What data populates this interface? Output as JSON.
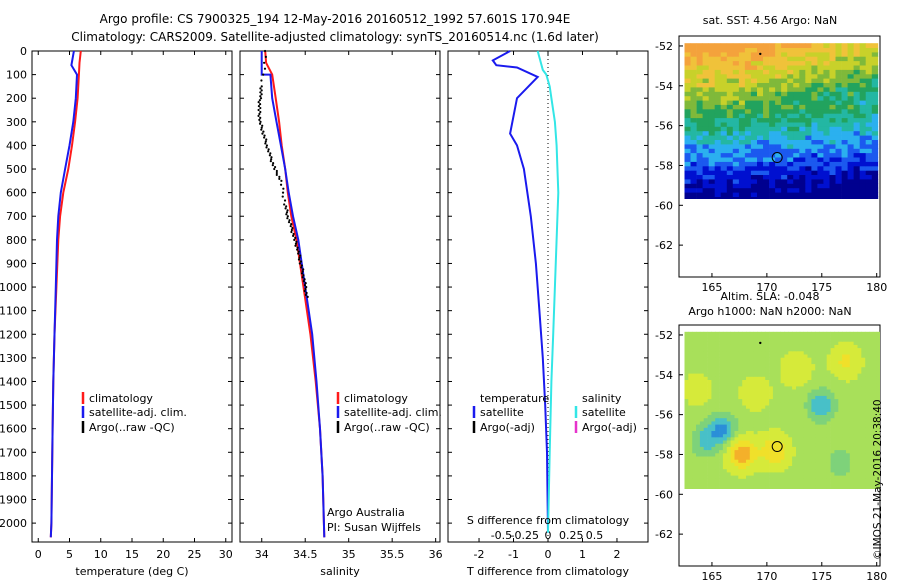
{
  "header": {
    "line1": "Argo profile: CS 7900325_194 12-May-2016 20160512_1992 57.601S 170.94E",
    "line2": "Climatology: CARS2009. Satellite-adjusted climatology: synTS_20160514.nc (1.6d later)"
  },
  "colors": {
    "climatology": "#ff1a1a",
    "satellite": "#1a1aee",
    "argo": "#000000",
    "salinity_satellite": "#33e6e6",
    "salinity_argo": "#e633cc"
  },
  "chart_data": [
    {
      "type": "line",
      "id": "temperature_profile",
      "xlabel": "temperature (deg C)",
      "ylabel": "",
      "xlim": [
        -1,
        31
      ],
      "ylim": [
        2080,
        0
      ],
      "xticks": [
        0,
        5,
        10,
        15,
        20,
        25,
        30
      ],
      "yticks": [
        0,
        100,
        200,
        300,
        400,
        500,
        600,
        700,
        800,
        900,
        1000,
        1100,
        1200,
        1300,
        1400,
        1500,
        1600,
        1700,
        1800,
        1900,
        2000
      ],
      "legend": [
        "climatology",
        "satellite-adj. clim.",
        "Argo(..raw -QC)"
      ],
      "legend_position": "lower-middle",
      "series": [
        {
          "name": "climatology",
          "color": "#ff1a1a",
          "x": [
            6.8,
            6.6,
            6.5,
            6.3,
            5.9,
            5.4,
            4.8,
            4.0,
            3.5,
            3.2,
            2.9,
            2.6,
            2.4,
            2.3,
            2.2,
            2.1,
            2.0
          ],
          "y": [
            0,
            50,
            100,
            200,
            300,
            400,
            500,
            600,
            700,
            800,
            1000,
            1200,
            1400,
            1600,
            1800,
            2000,
            2060
          ]
        },
        {
          "name": "satellite-adj. clim.",
          "color": "#1a1aee",
          "x": [
            5.7,
            5.3,
            6.2,
            6.0,
            5.6,
            5.0,
            4.3,
            3.6,
            3.2,
            3.0,
            2.8,
            2.6,
            2.4,
            2.3,
            2.2,
            2.1,
            2.0
          ],
          "y": [
            0,
            60,
            100,
            200,
            300,
            400,
            500,
            600,
            700,
            800,
            1000,
            1200,
            1400,
            1600,
            1800,
            2000,
            2060
          ]
        }
      ]
    },
    {
      "type": "line",
      "id": "salinity_profile",
      "xlabel": "salinity",
      "ylabel": "",
      "xlim": [
        33.75,
        36.05
      ],
      "ylim": [
        2080,
        0
      ],
      "xticks": [
        34,
        34.5,
        35,
        35.5,
        36
      ],
      "legend": [
        "climatology",
        "satellite-adj. clim.",
        "Argo(..raw -QC)"
      ],
      "legend_position": "lower-right",
      "annotations": [
        "Argo Australia",
        "PI: Susan Wijffels"
      ],
      "series": [
        {
          "name": "climatology",
          "color": "#ff1a1a",
          "x": [
            34.04,
            34.05,
            34.12,
            34.16,
            34.2,
            34.23,
            34.27,
            34.3,
            34.34,
            34.4,
            34.48,
            34.56,
            34.62,
            34.67,
            34.7,
            34.72
          ],
          "y": [
            0,
            50,
            100,
            200,
            300,
            400,
            500,
            600,
            700,
            800,
            1000,
            1200,
            1400,
            1600,
            1800,
            2060
          ]
        },
        {
          "name": "satellite-adj. clim.",
          "color": "#1a1aee",
          "x": [
            34.0,
            34.0,
            34.1,
            34.12,
            34.17,
            34.22,
            34.27,
            34.31,
            34.36,
            34.42,
            34.5,
            34.58,
            34.63,
            34.67,
            34.7,
            34.72
          ],
          "y": [
            0,
            100,
            100,
            200,
            300,
            400,
            500,
            600,
            700,
            800,
            1000,
            1200,
            1400,
            1600,
            1800,
            2060
          ]
        },
        {
          "name": "Argo(..raw -QC)",
          "color": "#000000",
          "marker": "dot",
          "x": [
            34.05,
            34.0,
            33.98,
            33.97,
            33.98,
            34.02,
            34.06,
            34.1,
            34.15,
            34.22,
            34.27,
            34.3,
            34.34,
            34.38,
            34.42,
            34.45,
            34.48,
            34.5,
            34.52
          ],
          "y": [
            0,
            150,
            200,
            250,
            300,
            350,
            400,
            450,
            500,
            550,
            650,
            700,
            750,
            800,
            850,
            900,
            950,
            1000,
            1050
          ]
        }
      ]
    },
    {
      "type": "line",
      "id": "difference_profile",
      "xlabel": "T difference from climatology",
      "xlabel2": "S difference from climatology",
      "xlim": [
        -2.9,
        2.9
      ],
      "ylim": [
        2080,
        0
      ],
      "xticks_T": [
        -2,
        -1,
        0,
        1,
        2
      ],
      "xticks_S": [
        "-0.5",
        "-0.25",
        "0",
        "0.25",
        "0.5"
      ],
      "legend_left_title": "temperature",
      "legend_right_title": "salinity",
      "legend": [
        "satellite",
        "Argo(-adj)",
        "satellite",
        "Argo(-adj)"
      ],
      "series": [
        {
          "name": "temperature satellite",
          "color": "#1a1aee",
          "x": [
            -1.1,
            -1.6,
            -1.5,
            -0.9,
            -0.3,
            -0.9,
            -1.1,
            -0.9,
            -0.7,
            -0.5,
            -0.35,
            -0.25,
            -0.15,
            -0.08,
            -0.03,
            0.0
          ],
          "y": [
            0,
            40,
            60,
            70,
            110,
            200,
            350,
            400,
            500,
            700,
            900,
            1100,
            1300,
            1500,
            1700,
            2040
          ]
        },
        {
          "name": "salinity satellite",
          "color": "#33e6e6",
          "x": [
            -0.3,
            -0.15,
            -0.05,
            0.05,
            0.1,
            0.2,
            0.25,
            0.3,
            0.25,
            0.2,
            0.15,
            0.1,
            0.05,
            0.0
          ],
          "y": [
            0,
            80,
            100,
            150,
            200,
            300,
            400,
            600,
            800,
            1000,
            1200,
            1400,
            1700,
            2040
          ]
        }
      ]
    },
    {
      "type": "heatmap",
      "id": "sst_map",
      "title": "sat. SST: 4.56 Argo: NaN",
      "xlim": [
        162,
        180.3
      ],
      "ylim": [
        -63.6,
        -51.5
      ],
      "xticks": [
        165,
        170,
        175,
        180
      ],
      "yticks": [
        -52,
        -54,
        -56,
        -58,
        -60,
        -62
      ],
      "marker": {
        "lon": 170.94,
        "lat": -57.601
      },
      "data_extent": {
        "lon": [
          162.5,
          180
        ],
        "lat": [
          -60,
          -52
        ]
      }
    },
    {
      "type": "heatmap",
      "id": "sla_map",
      "title": "Altim. SLA: -0.048",
      "title2": "Argo h1000: NaN h2000: NaN",
      "xlim": [
        162,
        180.3
      ],
      "ylim": [
        -63.6,
        -51.5
      ],
      "xticks": [
        165,
        170,
        175,
        180
      ],
      "yticks": [
        -52,
        -54,
        -56,
        -58,
        -60,
        -62
      ],
      "marker": {
        "lon": 170.94,
        "lat": -57.601
      },
      "data_extent": {
        "lon": [
          162.5,
          180
        ],
        "lat": [
          -60,
          -52
        ]
      }
    }
  ],
  "copyright": "©IMOS 21-May-2016 20:38:40"
}
